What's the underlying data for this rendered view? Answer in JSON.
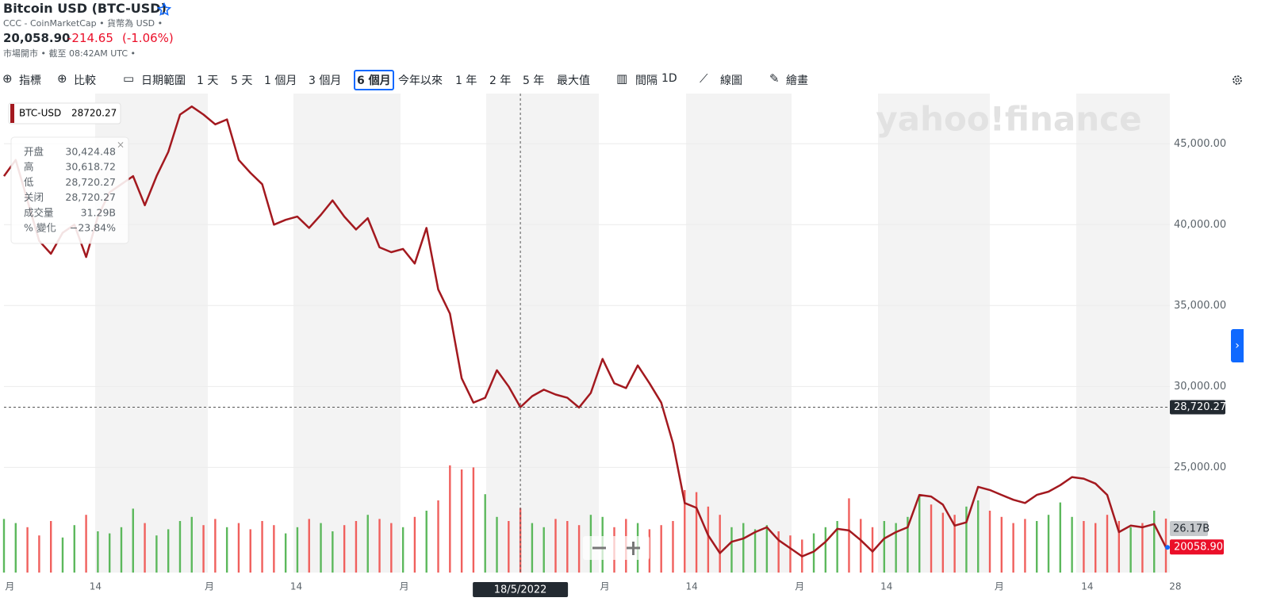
{
  "header": {
    "title": "Bitcoin USD (BTC-USD)",
    "source": "CCC - CoinMarketCap • 貨幣為 USD •",
    "price": "20,058.90",
    "change": "-214.65",
    "change_pct": "(-1.06%)",
    "status": "市場開市 • 截至 08:42AM UTC •"
  },
  "toolbar": {
    "items": [
      "指標",
      "比較",
      "日期範圍",
      "1 天",
      "5 天",
      "1 個月",
      "3 個月",
      "6 個月",
      "今年以來",
      "1 年",
      "2 年",
      "5 年",
      "最大值",
      "間隔",
      "1D",
      "線圖",
      "繪畫"
    ],
    "active": 7
  },
  "chart_data": {
    "type": "line",
    "watermark": "yahoo!finance",
    "series": [
      {
        "name": "BTC-USD",
        "color": "#a3191f",
        "values": [
          43000,
          44000,
          41500,
          39000,
          38200,
          39500,
          40000,
          38000,
          40500,
          42000,
          42500,
          43000,
          41200,
          43000,
          44500,
          46800,
          47300,
          46800,
          46200,
          46500,
          44000,
          43200,
          42500,
          40000,
          40300,
          40500,
          39800,
          40600,
          41500,
          40500,
          39700,
          40400,
          38600,
          38300,
          38500,
          37600,
          39800,
          36000,
          34500,
          30500,
          29000,
          29300,
          31000,
          30000,
          28720.27,
          29400,
          29800,
          29500,
          29300,
          28700,
          29600,
          31700,
          30200,
          29900,
          31300,
          30200,
          29000,
          26500,
          22800,
          22500,
          20800,
          19700,
          20400,
          20600,
          21000,
          21300,
          20500,
          20000,
          19500,
          19800,
          20400,
          21200,
          21100,
          20500,
          19800,
          20600,
          21000,
          21300,
          23300,
          23200,
          22700,
          21400,
          21600,
          23800,
          23600,
          23300,
          23000,
          22800,
          23300,
          23500,
          23900,
          24400,
          24300,
          24000,
          23300,
          21000,
          21400,
          21300,
          21500,
          20058.9
        ]
      }
    ],
    "volume": {
      "up_color": "#5cb85c",
      "down_color": "#f0605d",
      "label": "26.17B",
      "values": [
        26,
        24,
        22,
        18,
        25,
        17,
        23,
        28,
        20,
        19,
        22,
        31,
        24,
        18,
        21,
        25,
        27,
        23,
        26,
        22,
        24,
        21,
        25,
        23,
        19,
        22,
        26,
        24,
        20,
        23,
        25,
        28,
        26,
        24,
        22,
        27,
        30,
        35,
        52,
        50,
        51,
        38,
        27,
        25,
        31.29,
        24,
        22,
        26,
        25,
        23,
        28,
        27,
        22,
        26,
        24,
        21,
        23,
        25,
        40,
        39,
        32,
        28,
        22,
        24,
        21,
        23,
        20,
        18,
        16,
        19,
        22,
        25,
        36,
        26,
        22,
        25,
        24,
        27,
        37,
        33,
        29,
        28,
        32,
        35,
        30,
        27,
        24,
        26,
        25,
        28,
        34,
        27,
        25,
        24,
        28,
        25,
        22,
        24,
        30,
        26.17
      ]
    },
    "xlim": [
      0,
      99
    ],
    "xticks": [
      {
        "value": 0.5,
        "label": "月"
      },
      {
        "value": 7.8,
        "label": "14"
      },
      {
        "value": 17.5,
        "label": "月"
      },
      {
        "value": 24.9,
        "label": "14"
      },
      {
        "value": 34.1,
        "label": "月"
      },
      {
        "value": 51.2,
        "label": "月"
      },
      {
        "value": 58.6,
        "label": "14"
      },
      {
        "value": 67.8,
        "label": "月"
      },
      {
        "value": 75.2,
        "label": "14"
      },
      {
        "value": 84.8,
        "label": "月"
      },
      {
        "value": 92.3,
        "label": "14"
      },
      {
        "value": 99.8,
        "label": "28"
      }
    ],
    "ylim": [
      18500,
      48100
    ],
    "yticks": [
      {
        "value": 25000,
        "label": "25,000.00"
      },
      {
        "value": 30000,
        "label": "30,000.00"
      },
      {
        "value": 35000,
        "label": "35,000.00"
      },
      {
        "value": 40000,
        "label": "40,000.00"
      },
      {
        "value": 45000,
        "label": "45,000.00"
      }
    ],
    "grid": true,
    "last_price": {
      "value": 20058.9,
      "label": "20058.90"
    },
    "crosshair": {
      "x": 44,
      "date": "18/5/2022",
      "value": 28720.27,
      "label": "28,720.27",
      "legend_label": "28720.27"
    },
    "tooltip": [
      [
        "开盘",
        "30,424.48"
      ],
      [
        "高",
        "30,618.72"
      ],
      [
        "低",
        "28,720.27"
      ],
      [
        "关闭",
        "28,720.27"
      ],
      [
        "成交量",
        "31.29B"
      ],
      [
        "% 變化",
        "−23.84%"
      ]
    ]
  }
}
